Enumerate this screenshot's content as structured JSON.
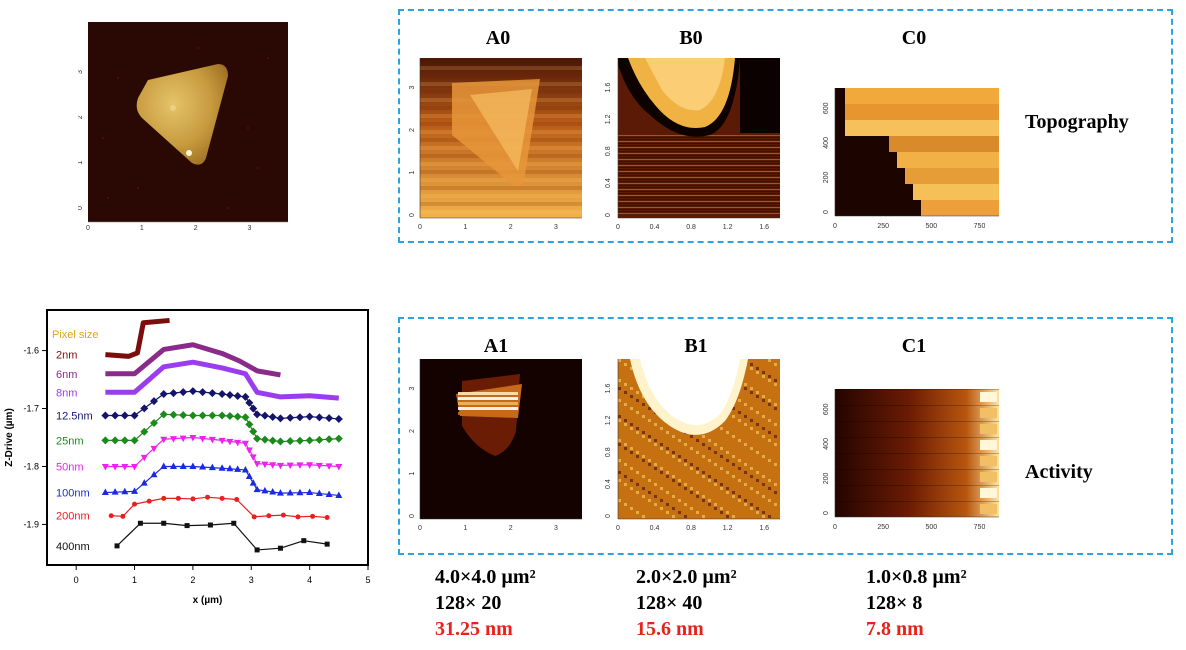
{
  "top_image": {
    "x_ticks": [
      "0",
      "1",
      "2",
      "3"
    ],
    "y_ticks": [
      "0",
      "1",
      "2",
      "3"
    ]
  },
  "topography_panel": {
    "row_label": "Topography",
    "panels": [
      {
        "title": "A0",
        "x_ticks": [
          "0",
          "1",
          "2",
          "3"
        ],
        "y_ticks": [
          "0",
          "1",
          "2",
          "3"
        ]
      },
      {
        "title": "B0",
        "x_ticks": [
          "0",
          "0.4",
          "0.8",
          "1.2",
          "1.6"
        ],
        "y_ticks": [
          "0",
          "0.4",
          "0.8",
          "1.2",
          "1.6"
        ]
      },
      {
        "title": "C0",
        "x_ticks": [
          "0",
          "250",
          "500",
          "750"
        ],
        "y_ticks": [
          "0",
          "200",
          "400",
          "600"
        ]
      }
    ]
  },
  "activity_panel": {
    "row_label": "Activity",
    "panels": [
      {
        "title": "A1",
        "x_ticks": [
          "0",
          "1",
          "2",
          "3"
        ],
        "y_ticks": [
          "0",
          "1",
          "2",
          "3"
        ]
      },
      {
        "title": "B1",
        "x_ticks": [
          "0",
          "0.4",
          "0.8",
          "1.2",
          "1.6"
        ],
        "y_ticks": [
          "0",
          "0.4",
          "0.8",
          "1.2",
          "1.6"
        ]
      },
      {
        "title": "C1",
        "x_ticks": [
          "0",
          "250",
          "500",
          "750"
        ],
        "y_ticks": [
          "0",
          "200",
          "400",
          "600"
        ]
      }
    ]
  },
  "specs": [
    {
      "area": "4.0×4.0 µm²",
      "pixels": "128× 20",
      "pixel_size": "31.25 nm"
    },
    {
      "area": "2.0×2.0 µm²",
      "pixels": "128× 40",
      "pixel_size": "15.6 nm"
    },
    {
      "area": "1.0×0.8 µm²",
      "pixels": "128× 8",
      "pixel_size": "7.8 nm"
    }
  ],
  "chart_data": {
    "type": "line",
    "xlabel": "x (µm)",
    "ylabel": "Z-Drive (µm)",
    "xlim": [
      -0.5,
      5
    ],
    "ylim": [
      -1.97,
      -1.53
    ],
    "x_ticks": [
      0,
      1,
      2,
      3,
      4,
      5
    ],
    "y_ticks": [
      -1.6,
      -1.7,
      -1.8,
      -1.9
    ],
    "legend_title": "Pixel size",
    "legend_title_color": "#e2a21e",
    "series": [
      {
        "name": "2nm",
        "color": "#7b0d0d",
        "marker": "none",
        "x": [
          0.5,
          0.9,
          1.05,
          1.15,
          1.6
        ],
        "y": [
          -1.607,
          -1.61,
          -1.604,
          -1.552,
          -1.548
        ]
      },
      {
        "name": "6nm",
        "color": "#8a2a8a",
        "marker": "none",
        "x": [
          0.5,
          1.0,
          1.5,
          2.0,
          2.5,
          2.8,
          3.1,
          3.5
        ],
        "y": [
          -1.64,
          -1.64,
          -1.598,
          -1.59,
          -1.605,
          -1.618,
          -1.635,
          -1.642
        ]
      },
      {
        "name": "8nm",
        "color": "#9a3df0",
        "marker": "none",
        "x": [
          0.5,
          1.0,
          1.5,
          2.0,
          2.5,
          2.9,
          3.1,
          3.5,
          4.0,
          4.5
        ],
        "y": [
          -1.672,
          -1.672,
          -1.628,
          -1.62,
          -1.63,
          -1.64,
          -1.672,
          -1.68,
          -1.678,
          -1.682
        ]
      },
      {
        "name": "12.5nm",
        "color": "#14146b",
        "marker": "diamond",
        "x": [
          0.5,
          1.0,
          1.5,
          2.0,
          2.5,
          2.9,
          3.1,
          3.5,
          4.0,
          4.5
        ],
        "y": [
          -1.712,
          -1.712,
          -1.675,
          -1.67,
          -1.675,
          -1.68,
          -1.71,
          -1.717,
          -1.714,
          -1.718
        ]
      },
      {
        "name": "25nm",
        "color": "#1a8a1a",
        "marker": "diamond",
        "x": [
          0.5,
          1.0,
          1.5,
          2.0,
          2.5,
          2.9,
          3.1,
          3.5,
          4.0,
          4.5
        ],
        "y": [
          -1.755,
          -1.755,
          -1.71,
          -1.712,
          -1.712,
          -1.715,
          -1.752,
          -1.757,
          -1.755,
          -1.752
        ]
      },
      {
        "name": "50nm",
        "color": "#ee22ee",
        "marker": "triangle-down",
        "x": [
          0.5,
          1.0,
          1.5,
          2.0,
          2.5,
          2.9,
          3.1,
          3.5,
          4.0,
          4.5
        ],
        "y": [
          -1.8,
          -1.8,
          -1.753,
          -1.75,
          -1.755,
          -1.76,
          -1.795,
          -1.798,
          -1.797,
          -1.8
        ]
      },
      {
        "name": "100nm",
        "color": "#1a2ae0",
        "marker": "triangle-up",
        "x": [
          0.5,
          1.0,
          1.5,
          2.0,
          2.5,
          2.9,
          3.1,
          3.5,
          4.0,
          4.5
        ],
        "y": [
          -1.845,
          -1.843,
          -1.8,
          -1.8,
          -1.803,
          -1.806,
          -1.84,
          -1.846,
          -1.845,
          -1.85
        ]
      },
      {
        "name": "200nm",
        "color": "#e82020",
        "marker": "circle",
        "x": [
          0.6,
          0.8,
          1.0,
          1.25,
          1.5,
          1.75,
          2.0,
          2.25,
          2.5,
          2.75,
          3.05,
          3.3,
          3.55,
          3.8,
          4.05,
          4.3
        ],
        "y": [
          -1.885,
          -1.886,
          -1.865,
          -1.86,
          -1.855,
          -1.855,
          -1.856,
          -1.853,
          -1.855,
          -1.857,
          -1.887,
          -1.885,
          -1.884,
          -1.887,
          -1.886,
          -1.888
        ]
      },
      {
        "name": "400nm",
        "color": "#111111",
        "marker": "square",
        "x": [
          0.7,
          1.1,
          1.5,
          1.9,
          2.3,
          2.7,
          3.1,
          3.5,
          3.9,
          4.3
        ],
        "y": [
          -1.937,
          -1.898,
          -1.898,
          -1.902,
          -1.901,
          -1.898,
          -1.944,
          -1.941,
          -1.928,
          -1.934
        ]
      }
    ]
  }
}
